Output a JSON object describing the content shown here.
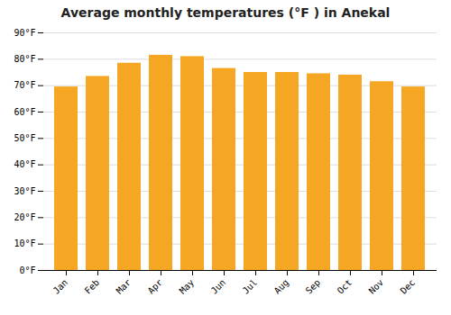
{
  "chart_data": {
    "type": "bar",
    "title": "Average monthly temperatures (°F ) in Anekal",
    "categories": [
      "Jan",
      "Feb",
      "Mar",
      "Apr",
      "May",
      "Jun",
      "Jul",
      "Aug",
      "Sep",
      "Oct",
      "Nov",
      "Dec"
    ],
    "values": [
      69.5,
      73.5,
      78.5,
      81.5,
      81.0,
      76.5,
      75.0,
      75.0,
      74.5,
      74.0,
      71.5,
      69.5
    ],
    "color": "#F5A623",
    "ylim": [
      0,
      90
    ],
    "yticks": [
      {
        "value": 0,
        "label": "0°F"
      },
      {
        "value": 10,
        "label": "10°F"
      },
      {
        "value": 20,
        "label": "20°F"
      },
      {
        "value": 30,
        "label": "30°F"
      },
      {
        "value": 40,
        "label": "40°F"
      },
      {
        "value": 50,
        "label": "50°F"
      },
      {
        "value": 60,
        "label": "60°F"
      },
      {
        "value": 70,
        "label": "70°F"
      },
      {
        "value": 80,
        "label": "80°F"
      },
      {
        "value": 90,
        "label": "90°F"
      }
    ],
    "grid": true
  }
}
